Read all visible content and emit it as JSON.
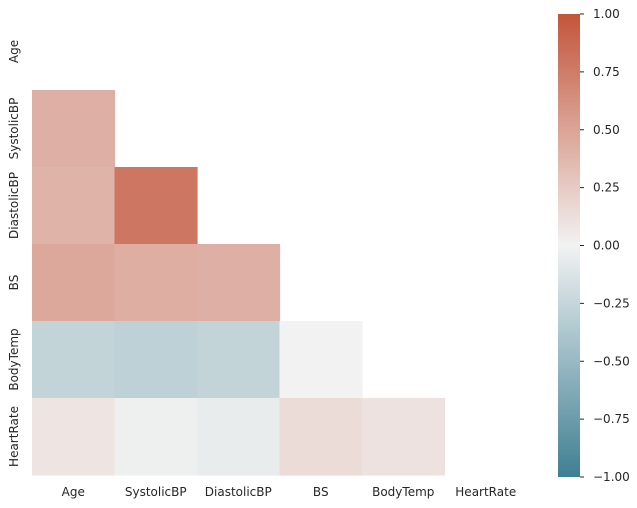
{
  "chart_data": {
    "type": "heatmap",
    "variant": "lower-triangle-correlation",
    "labels": [
      "Age",
      "SystolicBP",
      "DiastolicBP",
      "BS",
      "BodyTemp",
      "HeartRate"
    ],
    "matrix": [
      [
        1.0,
        0.42,
        0.4,
        0.47,
        -0.26,
        0.08
      ],
      [
        0.42,
        1.0,
        0.79,
        0.43,
        -0.29,
        -0.02
      ],
      [
        0.4,
        0.79,
        1.0,
        0.42,
        -0.26,
        -0.05
      ],
      [
        0.47,
        0.43,
        0.42,
        1.0,
        0.0,
        0.14
      ],
      [
        -0.26,
        -0.29,
        -0.26,
        0.0,
        1.0,
        0.1
      ],
      [
        0.08,
        -0.02,
        -0.05,
        0.14,
        0.1,
        1.0
      ]
    ],
    "mask": "upper-and-diagonal",
    "vmin": -1.0,
    "vmax": 1.0,
    "colormap": {
      "low": "#3f7f93",
      "mid": "#f2f2f2",
      "high": "#c3553a"
    },
    "colorbar": {
      "ticks": [
        1.0,
        0.75,
        0.5,
        0.25,
        0.0,
        -0.25,
        -0.5,
        -0.75,
        -1.0
      ],
      "tick_labels": [
        "1.00",
        "0.75",
        "0.50",
        "0.25",
        "0.00",
        "−0.25",
        "−0.50",
        "−0.75",
        "−1.00"
      ]
    },
    "title": "",
    "xlabel": "",
    "ylabel": ""
  }
}
